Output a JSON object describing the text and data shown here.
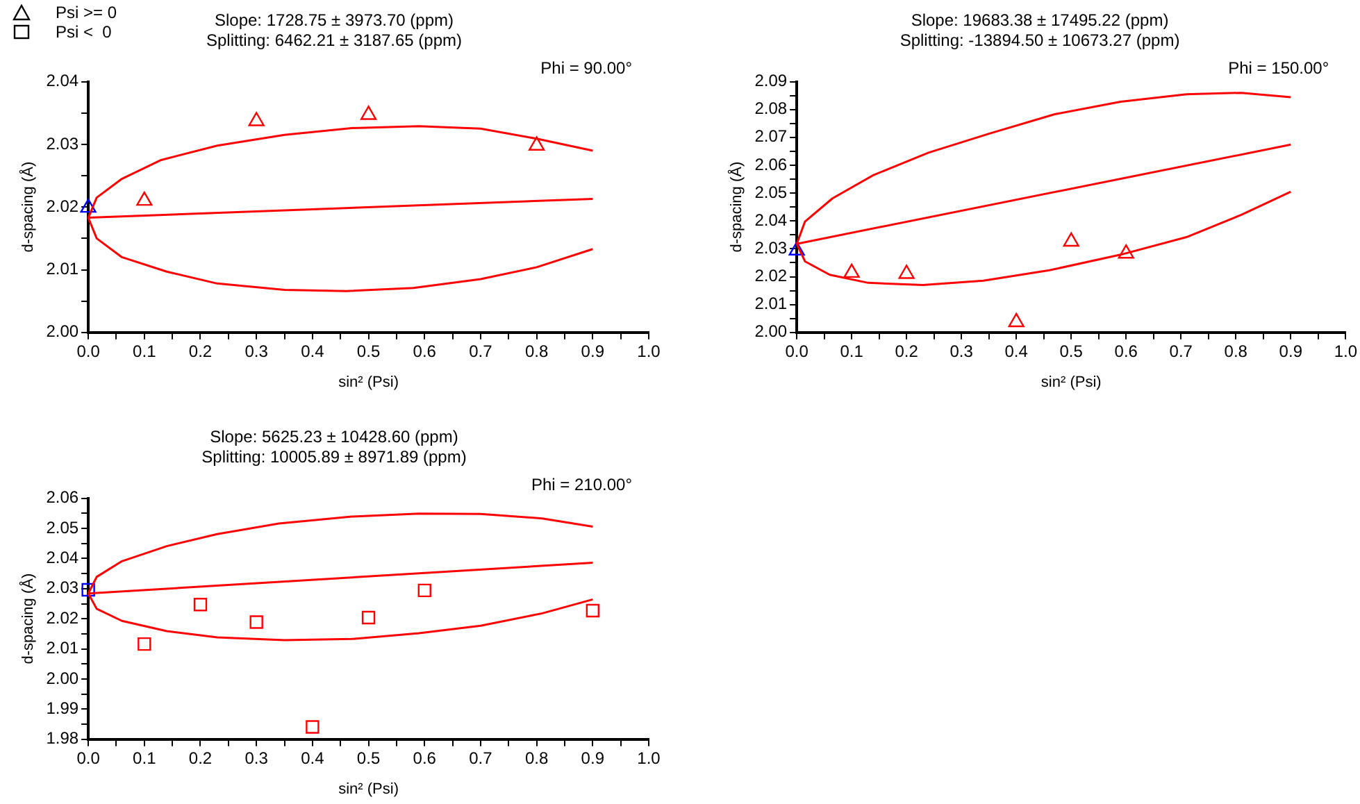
{
  "chart_data": [
    {
      "type": "scatter",
      "title": "Slope: 1728.75 ± 3973.70 (ppm)",
      "subtitle": "Splitting: 6462.21 ± 3187.65 (ppm)",
      "xlabel": "sin² (Psi)",
      "ylabel": "d-spacing (Å)",
      "annotations": [
        "Phi = 90.00°"
      ],
      "legend": "top left",
      "grid": false,
      "xlim": [
        0,
        1
      ],
      "xticks": [
        {
          "value": 0,
          "label": "0.0"
        },
        {
          "value": 0.05,
          "label": null
        },
        {
          "value": 0.1,
          "label": "0.1"
        },
        {
          "value": 0.15,
          "label": null
        },
        {
          "value": 0.2,
          "label": "0.2"
        },
        {
          "value": 0.25,
          "label": null
        },
        {
          "value": 0.3,
          "label": "0.3"
        },
        {
          "value": 0.35,
          "label": null
        },
        {
          "value": 0.4,
          "label": "0.4"
        },
        {
          "value": 0.45,
          "label": null
        },
        {
          "value": 0.5,
          "label": "0.5"
        },
        {
          "value": 0.55,
          "label": null
        },
        {
          "value": 0.6,
          "label": "0.6"
        },
        {
          "value": 0.65,
          "label": null
        },
        {
          "value": 0.7,
          "label": "0.7"
        },
        {
          "value": 0.75,
          "label": null
        },
        {
          "value": 0.8,
          "label": "0.8"
        },
        {
          "value": 0.85,
          "label": null
        },
        {
          "value": 0.9,
          "label": "0.9"
        },
        {
          "value": 0.95,
          "label": null
        },
        {
          "value": 1,
          "label": "1.0"
        }
      ],
      "ylim": [
        2.0,
        2.04
      ],
      "yticks": [
        {
          "value": 2.0,
          "label": "2.00"
        },
        {
          "value": 2.005,
          "label": null
        },
        {
          "value": 2.01,
          "label": "2.01"
        },
        {
          "value": 2.015,
          "label": null
        },
        {
          "value": 2.02,
          "label": "2.02"
        },
        {
          "value": 2.025,
          "label": null
        },
        {
          "value": 2.03,
          "label": "2.03"
        },
        {
          "value": 2.035,
          "label": null
        },
        {
          "value": 2.04,
          "label": "2.04"
        }
      ],
      "series": [
        {
          "type": "line",
          "marker": "none",
          "color": "#ff0000",
          "x": [
            0,
            0.9
          ],
          "values": [
            2.0183,
            2.0213
          ]
        },
        {
          "type": "line",
          "marker": "none",
          "color": "#ff0000",
          "x": [
            0,
            0.015,
            0.06,
            0.13,
            0.23,
            0.35,
            0.47,
            0.59,
            0.7,
            0.8,
            0.9
          ],
          "values": [
            2.0183,
            2.0215,
            2.0245,
            2.0275,
            2.0298,
            2.0315,
            2.0326,
            2.0329,
            2.0325,
            2.0309,
            2.029
          ]
        },
        {
          "type": "line",
          "marker": "none",
          "color": "#ff0000",
          "x": [
            0,
            0.015,
            0.06,
            0.14,
            0.23,
            0.35,
            0.46,
            0.58,
            0.7,
            0.8,
            0.9
          ],
          "values": [
            2.0183,
            2.015,
            2.012,
            2.0097,
            2.0078,
            2.0068,
            2.0066,
            2.0071,
            2.0085,
            2.0104,
            2.0133
          ]
        },
        {
          "name": "Psi >= 0",
          "marker": "triangle",
          "color": "#000000",
          "colors": [
            "#0000ff",
            "#ff0000",
            "#ff0000",
            "#ff0000",
            "#ff0000"
          ],
          "x": [
            0,
            0.1,
            0.3,
            0.5,
            0.8
          ],
          "values": [
            2.0199,
            2.021,
            2.0337,
            2.0347,
            2.0298
          ]
        }
      ]
    },
    {
      "type": "scatter",
      "title": "Slope: 19683.38 ± 17495.22 (ppm)",
      "subtitle": "Splitting: -13894.50 ± 10673.27 (ppm)",
      "xlabel": "sin² (Psi)",
      "ylabel": "d-spacing (Å)",
      "annotations": [
        "Phi = 150.00°"
      ],
      "grid": false,
      "xlim": [
        0,
        1
      ],
      "xticks": [
        {
          "value": 0,
          "label": "0.0"
        },
        {
          "value": 0.05,
          "label": null
        },
        {
          "value": 0.1,
          "label": "0.1"
        },
        {
          "value": 0.15,
          "label": null
        },
        {
          "value": 0.2,
          "label": "0.2"
        },
        {
          "value": 0.25,
          "label": null
        },
        {
          "value": 0.3,
          "label": "0.3"
        },
        {
          "value": 0.35,
          "label": null
        },
        {
          "value": 0.4,
          "label": "0.4"
        },
        {
          "value": 0.45,
          "label": null
        },
        {
          "value": 0.5,
          "label": "0.5"
        },
        {
          "value": 0.55,
          "label": null
        },
        {
          "value": 0.6,
          "label": "0.6"
        },
        {
          "value": 0.65,
          "label": null
        },
        {
          "value": 0.7,
          "label": "0.7"
        },
        {
          "value": 0.75,
          "label": null
        },
        {
          "value": 0.8,
          "label": "0.8"
        },
        {
          "value": 0.85,
          "label": null
        },
        {
          "value": 0.9,
          "label": "0.9"
        },
        {
          "value": 0.95,
          "label": null
        },
        {
          "value": 1,
          "label": "1.0"
        }
      ],
      "ylim": [
        2.0,
        2.09
      ],
      "yticks": [
        {
          "value": 2.0,
          "label": "2.00"
        },
        {
          "value": 2.005,
          "label": null
        },
        {
          "value": 2.01,
          "label": "2.01"
        },
        {
          "value": 2.015,
          "label": null
        },
        {
          "value": 2.02,
          "label": "2.02"
        },
        {
          "value": 2.025,
          "label": null
        },
        {
          "value": 2.03,
          "label": "2.03"
        },
        {
          "value": 2.035,
          "label": null
        },
        {
          "value": 2.04,
          "label": "2.04"
        },
        {
          "value": 2.045,
          "label": null
        },
        {
          "value": 2.05,
          "label": "2.05"
        },
        {
          "value": 2.055,
          "label": null
        },
        {
          "value": 2.06,
          "label": "2.06"
        },
        {
          "value": 2.065,
          "label": null
        },
        {
          "value": 2.07,
          "label": "2.07"
        },
        {
          "value": 2.075,
          "label": null
        },
        {
          "value": 2.08,
          "label": "2.08"
        },
        {
          "value": 2.085,
          "label": null
        },
        {
          "value": 2.09,
          "label": "2.09"
        }
      ],
      "series": [
        {
          "type": "line",
          "marker": "none",
          "color": "#ff0000",
          "x": [
            0,
            0.9
          ],
          "values": [
            2.0318,
            2.0674
          ]
        },
        {
          "type": "line",
          "marker": "none",
          "color": "#ff0000",
          "x": [
            0,
            0.015,
            0.065,
            0.14,
            0.24,
            0.35,
            0.47,
            0.59,
            0.71,
            0.81,
            0.9
          ],
          "values": [
            2.0318,
            2.0398,
            2.0481,
            2.0565,
            2.0645,
            2.0713,
            2.0783,
            2.0828,
            2.0855,
            2.086,
            2.0844
          ]
        },
        {
          "type": "line",
          "marker": "none",
          "color": "#ff0000",
          "x": [
            0,
            0.015,
            0.06,
            0.13,
            0.23,
            0.34,
            0.46,
            0.59,
            0.71,
            0.81,
            0.9
          ],
          "values": [
            2.0318,
            2.0255,
            2.0207,
            2.0178,
            2.017,
            2.0186,
            2.0223,
            2.0279,
            2.0342,
            2.0422,
            2.0505
          ]
        },
        {
          "marker": "triangle",
          "color": "#000000",
          "colors": [
            "#0000ff",
            "#ff0000",
            "#ff0000",
            "#ff0000",
            "#ff0000",
            "#ff0000"
          ],
          "x": [
            0,
            0.1,
            0.2,
            0.4,
            0.5,
            0.6
          ],
          "values": [
            2.0294,
            2.0214,
            2.021,
            2.0037,
            2.0326,
            2.0283
          ]
        }
      ]
    },
    {
      "type": "scatter",
      "title": "Slope: 5625.23 ± 10428.60 (ppm)",
      "subtitle": "Splitting: 10005.89 ± 8971.89 (ppm)",
      "xlabel": "sin² (Psi)",
      "ylabel": "d-spacing (Å)",
      "annotations": [
        "Phi = 210.00°"
      ],
      "grid": false,
      "xlim": [
        0,
        1
      ],
      "xticks": [
        {
          "value": 0,
          "label": "0.0"
        },
        {
          "value": 0.05,
          "label": null
        },
        {
          "value": 0.1,
          "label": "0.1"
        },
        {
          "value": 0.15,
          "label": null
        },
        {
          "value": 0.2,
          "label": "0.2"
        },
        {
          "value": 0.25,
          "label": null
        },
        {
          "value": 0.3,
          "label": "0.3"
        },
        {
          "value": 0.35,
          "label": null
        },
        {
          "value": 0.4,
          "label": "0.4"
        },
        {
          "value": 0.45,
          "label": null
        },
        {
          "value": 0.5,
          "label": "0.5"
        },
        {
          "value": 0.55,
          "label": null
        },
        {
          "value": 0.6,
          "label": "0.6"
        },
        {
          "value": 0.65,
          "label": null
        },
        {
          "value": 0.7,
          "label": "0.7"
        },
        {
          "value": 0.75,
          "label": null
        },
        {
          "value": 0.8,
          "label": "0.8"
        },
        {
          "value": 0.85,
          "label": null
        },
        {
          "value": 0.9,
          "label": "0.9"
        },
        {
          "value": 0.95,
          "label": null
        },
        {
          "value": 1,
          "label": "1.0"
        }
      ],
      "ylim": [
        1.98,
        2.06
      ],
      "yticks": [
        {
          "value": 1.98,
          "label": "1.98"
        },
        {
          "value": 1.985,
          "label": null
        },
        {
          "value": 1.99,
          "label": "1.99"
        },
        {
          "value": 1.995,
          "label": null
        },
        {
          "value": 2.0,
          "label": "2.00"
        },
        {
          "value": 2.005,
          "label": null
        },
        {
          "value": 2.01,
          "label": "2.01"
        },
        {
          "value": 2.015,
          "label": null
        },
        {
          "value": 2.02,
          "label": "2.02"
        },
        {
          "value": 2.025,
          "label": null
        },
        {
          "value": 2.03,
          "label": "2.03"
        },
        {
          "value": 2.035,
          "label": null
        },
        {
          "value": 2.04,
          "label": "2.04"
        },
        {
          "value": 2.045,
          "label": null
        },
        {
          "value": 2.05,
          "label": "2.05"
        },
        {
          "value": 2.055,
          "label": null
        },
        {
          "value": 2.06,
          "label": "2.06"
        }
      ],
      "series": [
        {
          "type": "line",
          "marker": "none",
          "color": "#ff0000",
          "x": [
            0,
            0.9
          ],
          "values": [
            2.0284,
            2.0386
          ]
        },
        {
          "type": "line",
          "marker": "none",
          "color": "#ff0000",
          "x": [
            0,
            0.015,
            0.06,
            0.14,
            0.23,
            0.34,
            0.47,
            0.59,
            0.7,
            0.81,
            0.9
          ],
          "values": [
            2.0284,
            2.0339,
            2.0391,
            2.0441,
            2.0481,
            2.0516,
            2.0539,
            2.0549,
            2.0548,
            2.0533,
            2.0506
          ]
        },
        {
          "type": "line",
          "marker": "none",
          "color": "#ff0000",
          "x": [
            0,
            0.015,
            0.06,
            0.14,
            0.23,
            0.35,
            0.47,
            0.59,
            0.7,
            0.81,
            0.9
          ],
          "values": [
            2.0284,
            2.0233,
            2.0193,
            2.0159,
            2.0138,
            2.0129,
            2.0133,
            2.0152,
            2.0177,
            2.0218,
            2.0264
          ]
        },
        {
          "name": "Psi <  0",
          "marker": "square",
          "color": "#000000",
          "colors": [
            "#0000ff",
            "#ff0000",
            "#ff0000",
            "#ff0000",
            "#ff0000",
            "#ff0000",
            "#ff0000",
            "#ff0000"
          ],
          "x": [
            0,
            0.1,
            0.2,
            0.3,
            0.4,
            0.5,
            0.6,
            0.9
          ],
          "values": [
            2.0296,
            2.0116,
            2.0247,
            2.0189,
            1.9841,
            2.0204,
            2.0294,
            2.0227
          ]
        }
      ]
    }
  ]
}
